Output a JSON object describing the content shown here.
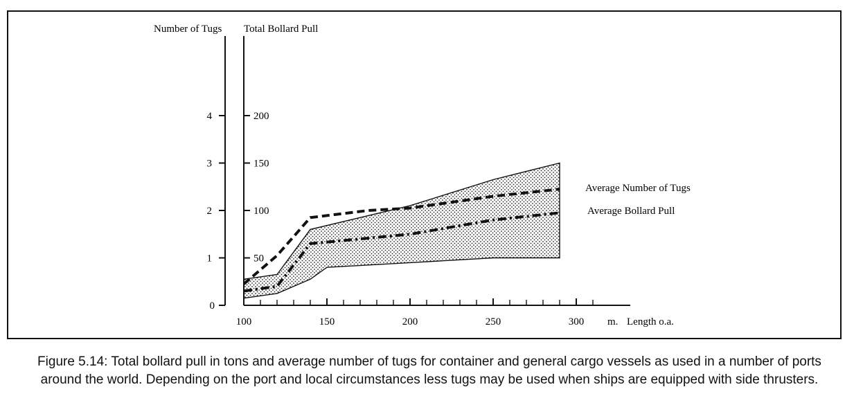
{
  "chart_data": {
    "type": "area",
    "x_label": "Length o.a.",
    "x_unit": "m.",
    "x_range": [
      100,
      310
    ],
    "x_ticks": [
      100,
      150,
      200,
      250,
      300
    ],
    "y_left": {
      "label": "Number of Tugs",
      "range": [
        0,
        5
      ],
      "ticks": [
        0,
        1,
        2,
        3,
        4
      ]
    },
    "y_right": {
      "label": "Total Bollard Pull",
      "range": [
        0,
        250
      ],
      "ticks": [
        50,
        100,
        150,
        200
      ]
    },
    "band": {
      "upper": [
        [
          100,
          0.55
        ],
        [
          120,
          0.65
        ],
        [
          140,
          1.6
        ],
        [
          200,
          2.1
        ],
        [
          250,
          2.65
        ],
        [
          290,
          3.0
        ]
      ],
      "lower": [
        [
          100,
          0.15
        ],
        [
          120,
          0.25
        ],
        [
          140,
          0.55
        ],
        [
          150,
          0.8
        ],
        [
          200,
          0.9
        ],
        [
          250,
          1.0
        ],
        [
          290,
          1.0
        ]
      ]
    },
    "series": [
      {
        "name": "Average Number of Tugs",
        "style": "dashed",
        "axis": "left",
        "points": [
          [
            100,
            0.45
          ],
          [
            120,
            1.05
          ],
          [
            140,
            1.85
          ],
          [
            175,
            2.0
          ],
          [
            200,
            2.05
          ],
          [
            250,
            2.3
          ],
          [
            290,
            2.45
          ]
        ]
      },
      {
        "name": "Average Bollard Pull",
        "style": "dash-dot",
        "axis": "left",
        "points": [
          [
            100,
            0.3
          ],
          [
            120,
            0.4
          ],
          [
            140,
            1.3
          ],
          [
            200,
            1.5
          ],
          [
            250,
            1.8
          ],
          [
            290,
            1.95
          ]
        ]
      }
    ]
  },
  "caption": "Figure 5.14: Total bollard pull in tons and average number of tugs for container and general cargo vessels as used in a number of ports around the world. Depending on the port and local circumstances less tugs may be used when ships are equipped with side thrusters."
}
